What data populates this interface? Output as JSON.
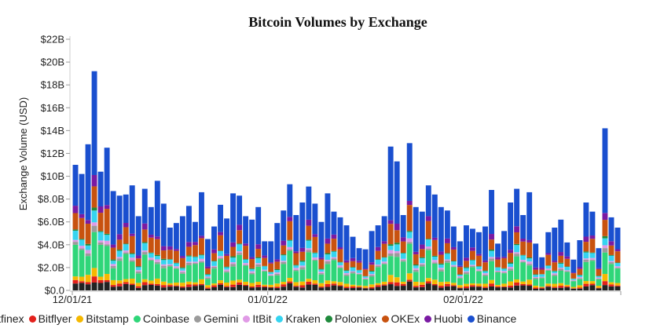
{
  "chart_data": {
    "type": "bar",
    "stacked": true,
    "title": "Bitcoin Volumes by Exchange",
    "xlabel": "",
    "ylabel": "Exchange Volume (USD)",
    "ylim": [
      0,
      22
    ],
    "yticks": [
      0,
      2,
      4,
      6,
      8,
      10,
      12,
      14,
      16,
      18,
      20,
      22
    ],
    "ytick_labels": [
      "$0.0",
      "$2.0B",
      "$4.0B",
      "$6.0B",
      "$8.0B",
      "$10B",
      "$12B",
      "$14B",
      "$16B",
      "$18B",
      "$20B",
      "$22B"
    ],
    "xticks": [
      {
        "label": "12/01/21",
        "index": 0
      },
      {
        "label": "01/01/22",
        "index": 31
      },
      {
        "label": "02/01/22",
        "index": 62
      }
    ],
    "grid": false,
    "legend_position": "bottom",
    "x": [
      "2021-12-01",
      "2021-12-02",
      "2021-12-03",
      "2021-12-04",
      "2021-12-05",
      "2021-12-06",
      "2021-12-07",
      "2021-12-08",
      "2021-12-09",
      "2021-12-10",
      "2021-12-11",
      "2021-12-12",
      "2021-12-13",
      "2021-12-14",
      "2021-12-15",
      "2021-12-16",
      "2021-12-17",
      "2021-12-18",
      "2021-12-19",
      "2021-12-20",
      "2021-12-21",
      "2021-12-22",
      "2021-12-23",
      "2021-12-24",
      "2021-12-25",
      "2021-12-26",
      "2021-12-27",
      "2021-12-28",
      "2021-12-29",
      "2021-12-30",
      "2021-12-31",
      "2022-01-01",
      "2022-01-02",
      "2022-01-03",
      "2022-01-04",
      "2022-01-05",
      "2022-01-06",
      "2022-01-07",
      "2022-01-08",
      "2022-01-09",
      "2022-01-10",
      "2022-01-11",
      "2022-01-12",
      "2022-01-13",
      "2022-01-14",
      "2022-01-15",
      "2022-01-16",
      "2022-01-17",
      "2022-01-18",
      "2022-01-19",
      "2022-01-20",
      "2022-01-21",
      "2022-01-22",
      "2022-01-23",
      "2022-01-24",
      "2022-01-25",
      "2022-01-26",
      "2022-01-27",
      "2022-01-28",
      "2022-01-29",
      "2022-01-30",
      "2022-01-31",
      "2022-02-01",
      "2022-02-02",
      "2022-02-03",
      "2022-02-04",
      "2022-02-05",
      "2022-02-06",
      "2022-02-07",
      "2022-02-08",
      "2022-02-09",
      "2022-02-10",
      "2022-02-11",
      "2022-02-12",
      "2022-02-13",
      "2022-02-14",
      "2022-02-15",
      "2022-02-16",
      "2022-02-17",
      "2022-02-18",
      "2022-02-19",
      "2022-02-20",
      "2022-02-21",
      "2022-02-22",
      "2022-02-23",
      "2022-02-24",
      "2022-02-25"
    ],
    "totals": [
      11.0,
      10.2,
      12.8,
      19.2,
      10.4,
      12.5,
      8.7,
      8.3,
      8.4,
      9.2,
      6.5,
      8.9,
      7.3,
      9.6,
      7.6,
      5.5,
      5.9,
      6.5,
      7.4,
      6.0,
      8.6,
      4.5,
      5.6,
      7.5,
      6.3,
      8.5,
      8.3,
      6.5,
      6.2,
      7.3,
      4.3,
      4.3,
      5.9,
      7.0,
      9.3,
      6.6,
      7.7,
      9.1,
      7.6,
      6.0,
      8.5,
      6.9,
      6.4,
      5.7,
      4.7,
      3.7,
      3.6,
      5.2,
      5.7,
      6.5,
      12.6,
      11.3,
      6.6,
      12.9,
      7.3,
      6.9,
      9.2,
      8.4,
      7.3,
      7.0,
      5.6,
      4.3,
      5.7,
      5.4,
      5.1,
      5.6,
      8.8,
      4.1,
      5.2,
      7.7,
      8.9,
      6.6,
      8.6,
      4.1,
      2.9,
      5.1,
      5.5,
      6.2,
      4.2,
      2.7,
      4.4,
      7.7,
      6.9,
      3.7,
      14.2,
      6.4,
      5.5
    ],
    "series": [
      {
        "name": "Bitfinex",
        "color": "#222222",
        "share": 0.05
      },
      {
        "name": "Bitflyer",
        "color": "#e3211c",
        "share": 0.02
      },
      {
        "name": "Bitstamp",
        "color": "#f5b800",
        "share": 0.04
      },
      {
        "name": "Coinbase",
        "color": "#2fd679",
        "share": 0.19
      },
      {
        "name": "Gemini",
        "color": "#9b9b9b",
        "share": 0.02
      },
      {
        "name": "ItBit",
        "color": "#e09ae6",
        "share": 0.02
      },
      {
        "name": "Kraken",
        "color": "#35d4f0",
        "share": 0.05
      },
      {
        "name": "Poloniex",
        "color": "#1f8a3c",
        "share": 0.01
      },
      {
        "name": "OKEx",
        "color": "#c8520f",
        "share": 0.14
      },
      {
        "name": "Huobi",
        "color": "#7a1aa3",
        "share": 0.04
      },
      {
        "name": "Binance",
        "color": "#1a4fcf",
        "share": 0.42
      }
    ]
  },
  "legend": {
    "items": [
      {
        "label": "itfinex",
        "color": "#222222"
      },
      {
        "label": "Bitflyer",
        "color": "#e3211c"
      },
      {
        "label": "Bitstamp",
        "color": "#f5b800"
      },
      {
        "label": "Coinbase",
        "color": "#2fd679"
      },
      {
        "label": "Gemini",
        "color": "#9b9b9b"
      },
      {
        "label": "ItBit",
        "color": "#e09ae6"
      },
      {
        "label": "Kraken",
        "color": "#35d4f0"
      },
      {
        "label": "Poloniex",
        "color": "#1f8a3c"
      },
      {
        "label": "OKEx",
        "color": "#c8520f"
      },
      {
        "label": "Huobi",
        "color": "#7a1aa3"
      },
      {
        "label": "Binance",
        "color": "#1a4fcf"
      }
    ]
  }
}
